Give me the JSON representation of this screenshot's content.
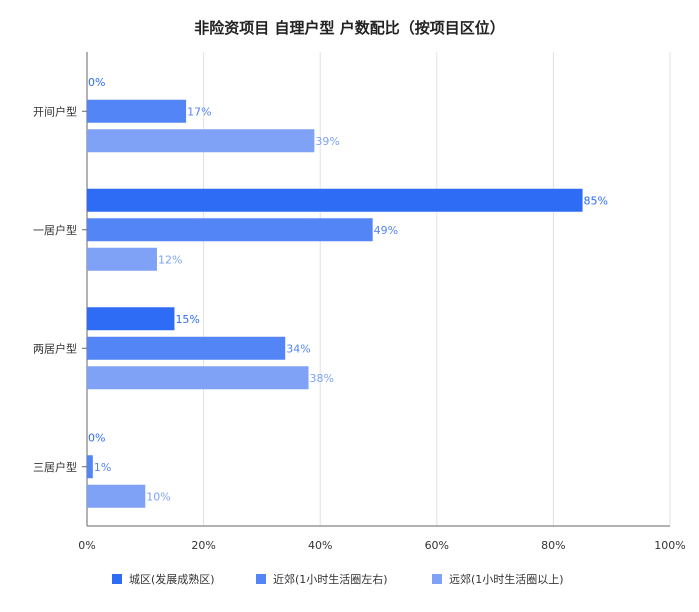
{
  "chart_data": {
    "type": "bar",
    "orientation": "horizontal",
    "title": "非险资项目 自理户型 户数配比（按项目区位）",
    "categories": [
      "开间户型",
      "一居户型",
      "两居户型",
      "三居户型"
    ],
    "series": [
      {
        "name": "城区(发展成熟区)",
        "values": [
          0,
          85,
          15,
          0
        ],
        "labels": [
          "0%",
          "85%",
          "15%",
          "0%"
        ],
        "color": "#2f6cf6"
      },
      {
        "name": "近郊(1小时生活圈左右)",
        "values": [
          17,
          49,
          34,
          1
        ],
        "labels": [
          "17%",
          "49%",
          "34%",
          "1%"
        ],
        "color": "#5485f7"
      },
      {
        "name": "远郊(1小时生活圈以上)",
        "values": [
          39,
          12,
          38,
          10
        ],
        "labels": [
          "39%",
          "12%",
          "38%",
          "10%"
        ],
        "color": "#7fa2f6"
      }
    ],
    "xlim": [
      0,
      100
    ],
    "xticks": [
      0,
      20,
      40,
      60,
      80,
      100
    ],
    "xtick_labels": [
      "0%",
      "20%",
      "40%",
      "60%",
      "80%",
      "100%"
    ],
    "grid": true,
    "legend": "bottom"
  }
}
